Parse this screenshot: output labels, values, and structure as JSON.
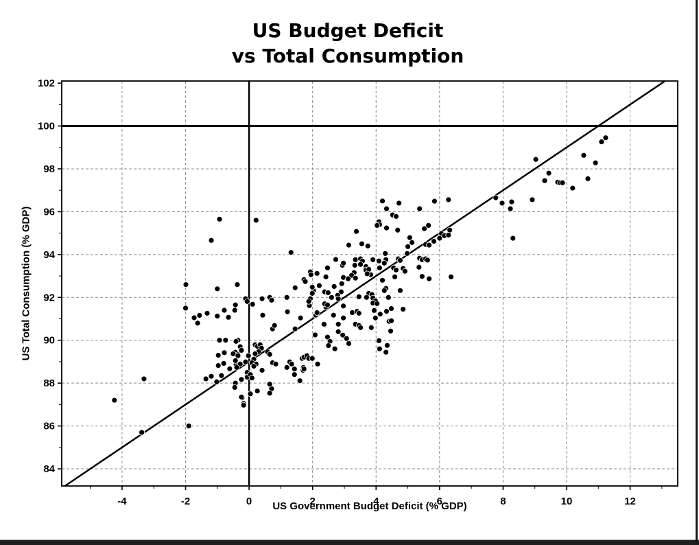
{
  "window_chrome": {
    "bottom_bar_color": "#1f1f1f",
    "bottom_bar_highlight": "#9a9a9a",
    "right_border_color": "#161616"
  },
  "chart_data": {
    "type": "scatter",
    "title_line1": "US Budget Deficit",
    "title_line2": "vs Total Consumption",
    "xlabel": "US Government Budget Deficit (% GDP)",
    "ylabel": "US Total Consumption (% GDP)",
    "xlim": [
      -5.9,
      13.5
    ],
    "ylim": [
      83.2,
      102.1
    ],
    "x_major_ticks": [
      -4,
      -2,
      0,
      2,
      4,
      6,
      8,
      10,
      12
    ],
    "y_major_ticks": [
      84,
      86,
      88,
      90,
      92,
      94,
      96,
      98,
      100,
      102
    ],
    "x_gridlines": [
      -4,
      -2,
      2,
      4,
      6,
      8,
      10,
      12
    ],
    "y_gridlines": [
      84,
      86,
      88,
      90,
      92,
      94,
      96,
      98
    ],
    "minor_tick_step": 1,
    "grid": {
      "on": true,
      "color": "#8c8c8c",
      "dash": "4 3"
    },
    "frame_color": "#000000",
    "marker": {
      "color": "#000000",
      "radius": 4,
      "halo": "#ffffff"
    },
    "reference_lines": {
      "horizontal_y": 100,
      "vertical_x": 0,
      "diagonal": {
        "slope": 1.0,
        "intercept": 89.0
      }
    },
    "points": [
      [
        -4.24,
        87.2
      ],
      [
        -3.31,
        88.2
      ],
      [
        -3.38,
        85.7
      ],
      [
        -1.9,
        86.0
      ],
      [
        -1.99,
        92.6
      ],
      [
        -2.0,
        91.5
      ],
      [
        -1.73,
        91.05
      ],
      [
        -1.62,
        90.8
      ],
      [
        -1.56,
        91.16
      ],
      [
        -0.93,
        95.65
      ],
      [
        -1.19,
        94.66
      ],
      [
        -1.0,
        92.4
      ],
      [
        -0.37,
        92.6
      ],
      [
        -1.32,
        91.26
      ],
      [
        -1.0,
        91.13
      ],
      [
        -0.78,
        91.4
      ],
      [
        -0.65,
        91.07
      ],
      [
        -0.45,
        91.4
      ],
      [
        -0.1,
        91.9
      ],
      [
        -0.43,
        91.65
      ],
      [
        -0.93,
        90.0
      ],
      [
        -0.74,
        90.0
      ],
      [
        -0.35,
        90.0
      ],
      [
        -0.97,
        89.3
      ],
      [
        -0.78,
        89.42
      ],
      [
        -0.43,
        89.44
      ],
      [
        -0.28,
        89.7
      ],
      [
        -0.35,
        89.33
      ],
      [
        -0.97,
        88.82
      ],
      [
        -0.8,
        88.92
      ],
      [
        -0.61,
        88.67
      ],
      [
        -0.41,
        88.86
      ],
      [
        -1.36,
        88.2
      ],
      [
        -1.19,
        88.32
      ],
      [
        -1.02,
        88.06
      ],
      [
        -0.87,
        88.35
      ],
      [
        -0.41,
        88.0
      ],
      [
        -0.24,
        89.53
      ],
      [
        -0.41,
        89.95
      ],
      [
        -0.5,
        89.37
      ],
      [
        -0.35,
        89.28
      ],
      [
        -0.43,
        89.05
      ],
      [
        -0.28,
        88.89
      ],
      [
        -0.39,
        88.73
      ],
      [
        -0.24,
        88.17
      ],
      [
        -0.43,
        88.0
      ],
      [
        -0.45,
        87.8
      ],
      [
        -0.22,
        87.31
      ],
      [
        -0.17,
        87.05
      ],
      [
        -0.24,
        87.35
      ],
      [
        -0.17,
        86.97
      ],
      [
        -0.06,
        88.5
      ],
      [
        -0.11,
        88.99
      ],
      [
        -0.02,
        89.28
      ],
      [
        -0.06,
        88.28
      ],
      [
        0.19,
        89.79
      ],
      [
        0.26,
        89.72
      ],
      [
        0.35,
        89.79
      ],
      [
        0.39,
        89.63
      ],
      [
        0.3,
        89.47
      ],
      [
        0.19,
        89.37
      ],
      [
        0.58,
        89.47
      ],
      [
        0.65,
        89.34
      ],
      [
        0.15,
        89.12
      ],
      [
        0.09,
        88.95
      ],
      [
        0.22,
        88.89
      ],
      [
        0.15,
        88.79
      ],
      [
        0.04,
        88.4
      ],
      [
        0.09,
        88.24
      ],
      [
        0.41,
        88.6
      ],
      [
        0.74,
        88.95
      ],
      [
        0.84,
        88.89
      ],
      [
        0.65,
        87.95
      ],
      [
        0.71,
        87.74
      ],
      [
        0.65,
        87.53
      ],
      [
        0.26,
        87.63
      ],
      [
        0.04,
        87.5
      ],
      [
        0.22,
        95.6
      ],
      [
        0.43,
        91.17
      ],
      [
        0.74,
        90.53
      ],
      [
        0.8,
        90.69
      ],
      [
        0.65,
        92.0
      ],
      [
        0.71,
        91.87
      ],
      [
        0.41,
        91.94
      ],
      [
        -0.11,
        91.94
      ],
      [
        -0.06,
        91.81
      ],
      [
        0.11,
        91.68
      ],
      [
        1.21,
        91.33
      ],
      [
        1.45,
        90.53
      ],
      [
        1.62,
        91.04
      ],
      [
        1.9,
        91.62
      ],
      [
        1.19,
        92.0
      ],
      [
        1.32,
        94.1
      ],
      [
        1.28,
        88.99
      ],
      [
        1.34,
        88.89
      ],
      [
        1.19,
        88.73
      ],
      [
        1.43,
        88.66
      ],
      [
        1.43,
        88.4
      ],
      [
        1.6,
        88.11
      ],
      [
        1.7,
        88.6
      ],
      [
        1.67,
        89.15
      ],
      [
        1.73,
        89.21
      ],
      [
        1.82,
        89.28
      ],
      [
        1.88,
        89.15
      ],
      [
        1.99,
        89.15
      ],
      [
        1.71,
        88.73
      ],
      [
        1.73,
        88.66
      ],
      [
        1.93,
        93.19
      ],
      [
        1.95,
        93.06
      ],
      [
        1.73,
        92.83
      ],
      [
        1.77,
        92.74
      ],
      [
        1.45,
        92.45
      ],
      [
        1.93,
        91.94
      ],
      [
        1.88,
        91.81
      ],
      [
        2.42,
        91.56
      ],
      [
        2.1,
        91.17
      ],
      [
        2.66,
        91.17
      ],
      [
        2.38,
        90.72
      ],
      [
        2.81,
        90.4
      ],
      [
        2.16,
        88.89
      ],
      [
        2.14,
        93.12
      ],
      [
        2.21,
        92.55
      ],
      [
        2.03,
        92.32
      ],
      [
        1.99,
        92.48
      ],
      [
        1.99,
        92.19
      ],
      [
        2.42,
        92.96
      ],
      [
        2.47,
        93.38
      ],
      [
        2.73,
        93.77
      ],
      [
        2.94,
        93.5
      ],
      [
        2.68,
        92.51
      ],
      [
        2.92,
        92.64
      ],
      [
        2.38,
        92.26
      ],
      [
        2.49,
        92.22
      ],
      [
        2.9,
        92.26
      ],
      [
        2.79,
        92.1
      ],
      [
        2.81,
        91.94
      ],
      [
        2.6,
        92.0
      ],
      [
        2.38,
        91.7
      ],
      [
        2.47,
        91.65
      ],
      [
        2.14,
        91.29
      ],
      [
        2.36,
        90.75
      ],
      [
        2.81,
        90.75
      ],
      [
        2.08,
        90.25
      ],
      [
        2.47,
        90.15
      ],
      [
        2.55,
        89.95
      ],
      [
        2.5,
        89.75
      ],
      [
        2.7,
        89.6
      ],
      [
        2.97,
        93.6
      ],
      [
        2.97,
        92.93
      ],
      [
        2.97,
        91.6
      ],
      [
        2.97,
        91.04
      ],
      [
        2.95,
        90.24
      ],
      [
        3.07,
        90.08
      ],
      [
        3.14,
        89.85
      ],
      [
        3.38,
        95.08
      ],
      [
        3.14,
        94.44
      ],
      [
        3.55,
        94.5
      ],
      [
        3.74,
        94.4
      ],
      [
        3.35,
        93.76
      ],
      [
        3.51,
        93.8
      ],
      [
        3.57,
        93.7
      ],
      [
        3.33,
        93.5
      ],
      [
        3.51,
        93.54
      ],
      [
        3.9,
        93.76
      ],
      [
        3.68,
        93.44
      ],
      [
        3.68,
        93.28
      ],
      [
        3.77,
        93.31
      ],
      [
        3.83,
        93.06
      ],
      [
        3.72,
        93.1
      ],
      [
        3.31,
        93.16
      ],
      [
        3.23,
        93.03
      ],
      [
        3.35,
        92.9
      ],
      [
        3.12,
        92.87
      ],
      [
        3.77,
        92.19
      ],
      [
        3.87,
        92.13
      ],
      [
        3.46,
        92.03
      ],
      [
        3.7,
        92.0
      ],
      [
        3.9,
        91.97
      ],
      [
        3.98,
        91.84
      ],
      [
        3.9,
        91.74
      ],
      [
        3.94,
        91.39
      ],
      [
        3.98,
        91.04
      ],
      [
        3.85,
        90.59
      ],
      [
        3.25,
        91.29
      ],
      [
        3.4,
        91.35
      ],
      [
        3.46,
        91.26
      ],
      [
        3.35,
        90.75
      ],
      [
        3.46,
        90.69
      ],
      [
        3.51,
        90.59
      ],
      [
        4.2,
        96.5
      ],
      [
        4.72,
        96.4
      ],
      [
        4.33,
        96.14
      ],
      [
        4.52,
        95.85
      ],
      [
        4.63,
        95.78
      ],
      [
        4.09,
        95.53
      ],
      [
        4.11,
        95.4
      ],
      [
        4.03,
        95.36
      ],
      [
        4.33,
        95.24
      ],
      [
        4.68,
        95.14
      ],
      [
        4.29,
        94.05
      ],
      [
        4.98,
        94.05
      ],
      [
        4.09,
        93.7
      ],
      [
        4.31,
        93.76
      ],
      [
        4.26,
        93.6
      ],
      [
        4.7,
        93.8
      ],
      [
        4.76,
        93.73
      ],
      [
        4.11,
        93.38
      ],
      [
        4.55,
        93.38
      ],
      [
        4.63,
        93.28
      ],
      [
        4.85,
        93.35
      ],
      [
        4.91,
        93.22
      ],
      [
        4.2,
        92.8
      ],
      [
        4.59,
        92.96
      ],
      [
        4.76,
        92.32
      ],
      [
        4.31,
        92.42
      ],
      [
        4.39,
        92.0
      ],
      [
        4.26,
        92.32
      ],
      [
        4.03,
        91.71
      ],
      [
        4.13,
        91.22
      ],
      [
        4.33,
        91.35
      ],
      [
        4.48,
        91.48
      ],
      [
        4.85,
        91.45
      ],
      [
        4.41,
        90.88
      ],
      [
        4.48,
        90.91
      ],
      [
        4.46,
        90.43
      ],
      [
        4.09,
        89.98
      ],
      [
        4.11,
        89.6
      ],
      [
        4.31,
        89.44
      ],
      [
        4.35,
        89.76
      ],
      [
        5.37,
        96.14
      ],
      [
        5.84,
        96.49
      ],
      [
        5.52,
        95.21
      ],
      [
        5.65,
        95.36
      ],
      [
        5.06,
        94.79
      ],
      [
        5.13,
        94.56
      ],
      [
        5.0,
        94.37
      ],
      [
        5.82,
        94.62
      ],
      [
        5.37,
        93.83
      ],
      [
        5.45,
        93.76
      ],
      [
        5.56,
        93.8
      ],
      [
        5.62,
        93.74
      ],
      [
        5.35,
        93.41
      ],
      [
        5.67,
        92.87
      ],
      [
        5.45,
        92.98
      ],
      [
        6.28,
        96.56
      ],
      [
        6.32,
        95.14
      ],
      [
        6.06,
        94.98
      ],
      [
        6.17,
        94.91
      ],
      [
        6.15,
        94.88
      ],
      [
        6.28,
        94.91
      ],
      [
        6.0,
        94.76
      ],
      [
        5.56,
        94.47
      ],
      [
        5.67,
        94.44
      ],
      [
        6.36,
        92.96
      ],
      [
        7.77,
        96.65
      ],
      [
        7.97,
        96.4
      ],
      [
        8.27,
        96.46
      ],
      [
        8.23,
        96.14
      ],
      [
        8.92,
        96.56
      ],
      [
        8.31,
        94.76
      ],
      [
        9.03,
        98.44
      ],
      [
        9.44,
        97.8
      ],
      [
        9.31,
        97.45
      ],
      [
        9.72,
        97.38
      ],
      [
        9.8,
        97.35
      ],
      [
        9.87,
        97.35
      ],
      [
        10.19,
        97.1
      ],
      [
        10.54,
        98.63
      ],
      [
        10.91,
        98.28
      ],
      [
        10.67,
        97.54
      ],
      [
        11.1,
        99.26
      ],
      [
        11.23,
        99.45
      ]
    ]
  }
}
